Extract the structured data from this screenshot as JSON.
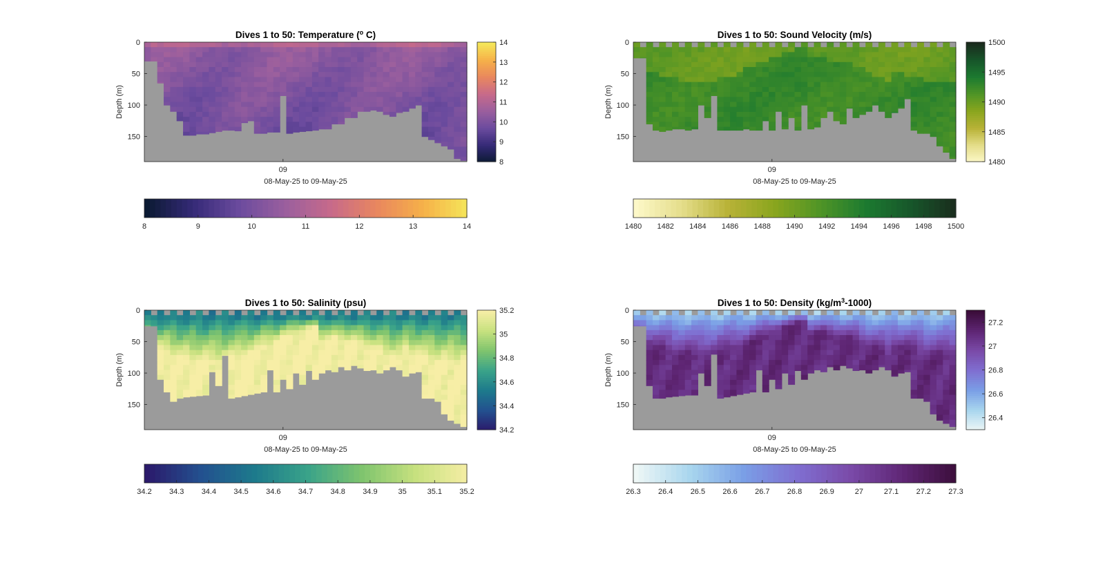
{
  "figure_kind": "glider-section-plots",
  "colors": {
    "background": "#ffffff",
    "nodata": "#9b9b9b",
    "axis": "#262626"
  },
  "chart_data": [
    {
      "type": "heatmap",
      "title": "Dives 1 to 50: Temperature (",
      "title_sup": "o",
      "title_tail": " C)",
      "xlabel": "08-May-25 to 09-May-25",
      "ylabel": "Depth (m)",
      "x_tick_labels": [
        "09"
      ],
      "ylim": [
        0,
        190
      ],
      "y_ticks": [
        0,
        50,
        100,
        150
      ],
      "dives": 50,
      "bottom_depth_m": [
        30,
        30,
        65,
        100,
        110,
        125,
        148,
        148,
        146,
        146,
        144,
        142,
        140,
        140,
        141,
        128,
        125,
        145,
        145,
        143,
        143,
        85,
        145,
        143,
        142,
        141,
        140,
        138,
        138,
        130,
        130,
        120,
        120,
        110,
        110,
        108,
        110,
        115,
        118,
        112,
        110,
        105,
        100,
        150,
        155,
        160,
        165,
        170,
        185,
        188
      ],
      "colormap": [
        "#0b1a33",
        "#352a77",
        "#6b4b9e",
        "#9a5f9e",
        "#c76a8a",
        "#e9875e",
        "#f6b149",
        "#f5e85a"
      ],
      "cbar_right": {
        "ticks": [
          8,
          9,
          10,
          11,
          12,
          13,
          14
        ],
        "range": [
          8,
          14
        ]
      },
      "cbar_bottom": {
        "ticks": [
          8,
          9,
          10,
          11,
          12,
          13,
          14
        ],
        "range": [
          8,
          14
        ]
      },
      "profile": {
        "surface": 10.4,
        "deep": 10.2
      }
    },
    {
      "type": "heatmap",
      "title": "Dives 1 to 50: Sound Velocity (m/s)",
      "title_sup": "",
      "title_tail": "",
      "xlabel": "08-May-25 to 09-May-25",
      "ylabel": "Depth (m)",
      "x_tick_labels": [
        "09"
      ],
      "ylim": [
        0,
        190
      ],
      "y_ticks": [
        0,
        50,
        100,
        150
      ],
      "dives": 50,
      "bottom_depth_m": [
        25,
        25,
        130,
        140,
        142,
        140,
        138,
        138,
        140,
        138,
        100,
        120,
        85,
        140,
        140,
        140,
        140,
        138,
        140,
        140,
        125,
        140,
        110,
        138,
        120,
        140,
        100,
        138,
        135,
        120,
        110,
        125,
        130,
        105,
        120,
        115,
        110,
        100,
        110,
        120,
        112,
        105,
        90,
        140,
        145,
        145,
        150,
        165,
        175,
        185
      ],
      "colormap": [
        "#fdf8c8",
        "#e4dd8a",
        "#b8b237",
        "#8aa61e",
        "#4f9426",
        "#1c7a30",
        "#17552a",
        "#1a2a1c"
      ],
      "cbar_right": {
        "ticks": [
          1480,
          1485,
          1490,
          1495,
          1500
        ],
        "range": [
          1480,
          1500
        ]
      },
      "cbar_bottom": {
        "ticks": [
          1480,
          1482,
          1484,
          1486,
          1488,
          1490,
          1492,
          1494,
          1496,
          1498,
          1500
        ],
        "range": [
          1480,
          1500
        ]
      },
      "profile": {
        "surface": 1490.3,
        "deep": 1492.6
      }
    },
    {
      "type": "heatmap",
      "title": "Dives 1 to 50: Salinity (psu)",
      "title_sup": "",
      "title_tail": "",
      "xlabel": "08-May-25 to 09-May-25",
      "ylabel": "Depth (m)",
      "x_tick_labels": [
        "09"
      ],
      "ylim": [
        0,
        190
      ],
      "y_ticks": [
        0,
        50,
        100,
        150
      ],
      "dives": 50,
      "bottom_depth_m": [
        25,
        25,
        110,
        130,
        145,
        140,
        138,
        137,
        136,
        135,
        98,
        120,
        72,
        140,
        138,
        136,
        134,
        132,
        130,
        95,
        130,
        110,
        125,
        100,
        118,
        96,
        110,
        100,
        95,
        98,
        90,
        95,
        88,
        92,
        96,
        95,
        100,
        95,
        90,
        95,
        105,
        100,
        98,
        140,
        140,
        145,
        165,
        175,
        180,
        185
      ],
      "colormap": [
        "#2b1a6b",
        "#23508f",
        "#1d7a8c",
        "#3aa389",
        "#7fc46e",
        "#c7e17f",
        "#f7eea6"
      ],
      "cbar_right": {
        "ticks": [
          34.2,
          34.4,
          34.6,
          34.8,
          35,
          35.2
        ],
        "range": [
          34.2,
          35.2
        ]
      },
      "cbar_bottom": {
        "ticks": [
          34.2,
          34.3,
          34.4,
          34.5,
          34.6,
          34.7,
          34.8,
          34.9,
          35,
          35.1,
          35.2
        ],
        "range": [
          34.2,
          35.2
        ]
      },
      "profile": {
        "surface": 34.55,
        "deep": 35.2
      }
    },
    {
      "type": "heatmap",
      "title": "Dives 1 to 50: Density (kg/m",
      "title_sup": "3",
      "title_tail": "-1000)",
      "xlabel": "08-May-25 to 09-May-25",
      "ylabel": "Depth (m)",
      "x_tick_labels": [
        "09"
      ],
      "ylim": [
        0,
        190
      ],
      "y_ticks": [
        0,
        50,
        100,
        150
      ],
      "dives": 50,
      "bottom_depth_m": [
        25,
        25,
        120,
        140,
        140,
        138,
        137,
        136,
        135,
        135,
        100,
        120,
        70,
        140,
        138,
        136,
        134,
        132,
        130,
        95,
        130,
        110,
        125,
        100,
        118,
        96,
        110,
        100,
        95,
        98,
        90,
        95,
        88,
        92,
        96,
        95,
        100,
        95,
        90,
        95,
        105,
        100,
        98,
        140,
        140,
        145,
        165,
        175,
        180,
        185
      ],
      "colormap": [
        "#eef7f6",
        "#a9d6ee",
        "#7a9fe6",
        "#7f6fd1",
        "#7a4aa8",
        "#5e2573",
        "#3a0d38"
      ],
      "cbar_right": {
        "ticks": [
          26.4,
          26.6,
          26.8,
          27,
          27.2
        ],
        "range": [
          26.3,
          27.3
        ]
      },
      "cbar_bottom": {
        "ticks": [
          26.3,
          26.4,
          26.5,
          26.6,
          26.7,
          26.8,
          26.9,
          27,
          27.1,
          27.2,
          27.3
        ],
        "range": [
          26.3,
          27.3
        ]
      },
      "profile": {
        "surface": 26.5,
        "deep": 27.1
      }
    }
  ]
}
